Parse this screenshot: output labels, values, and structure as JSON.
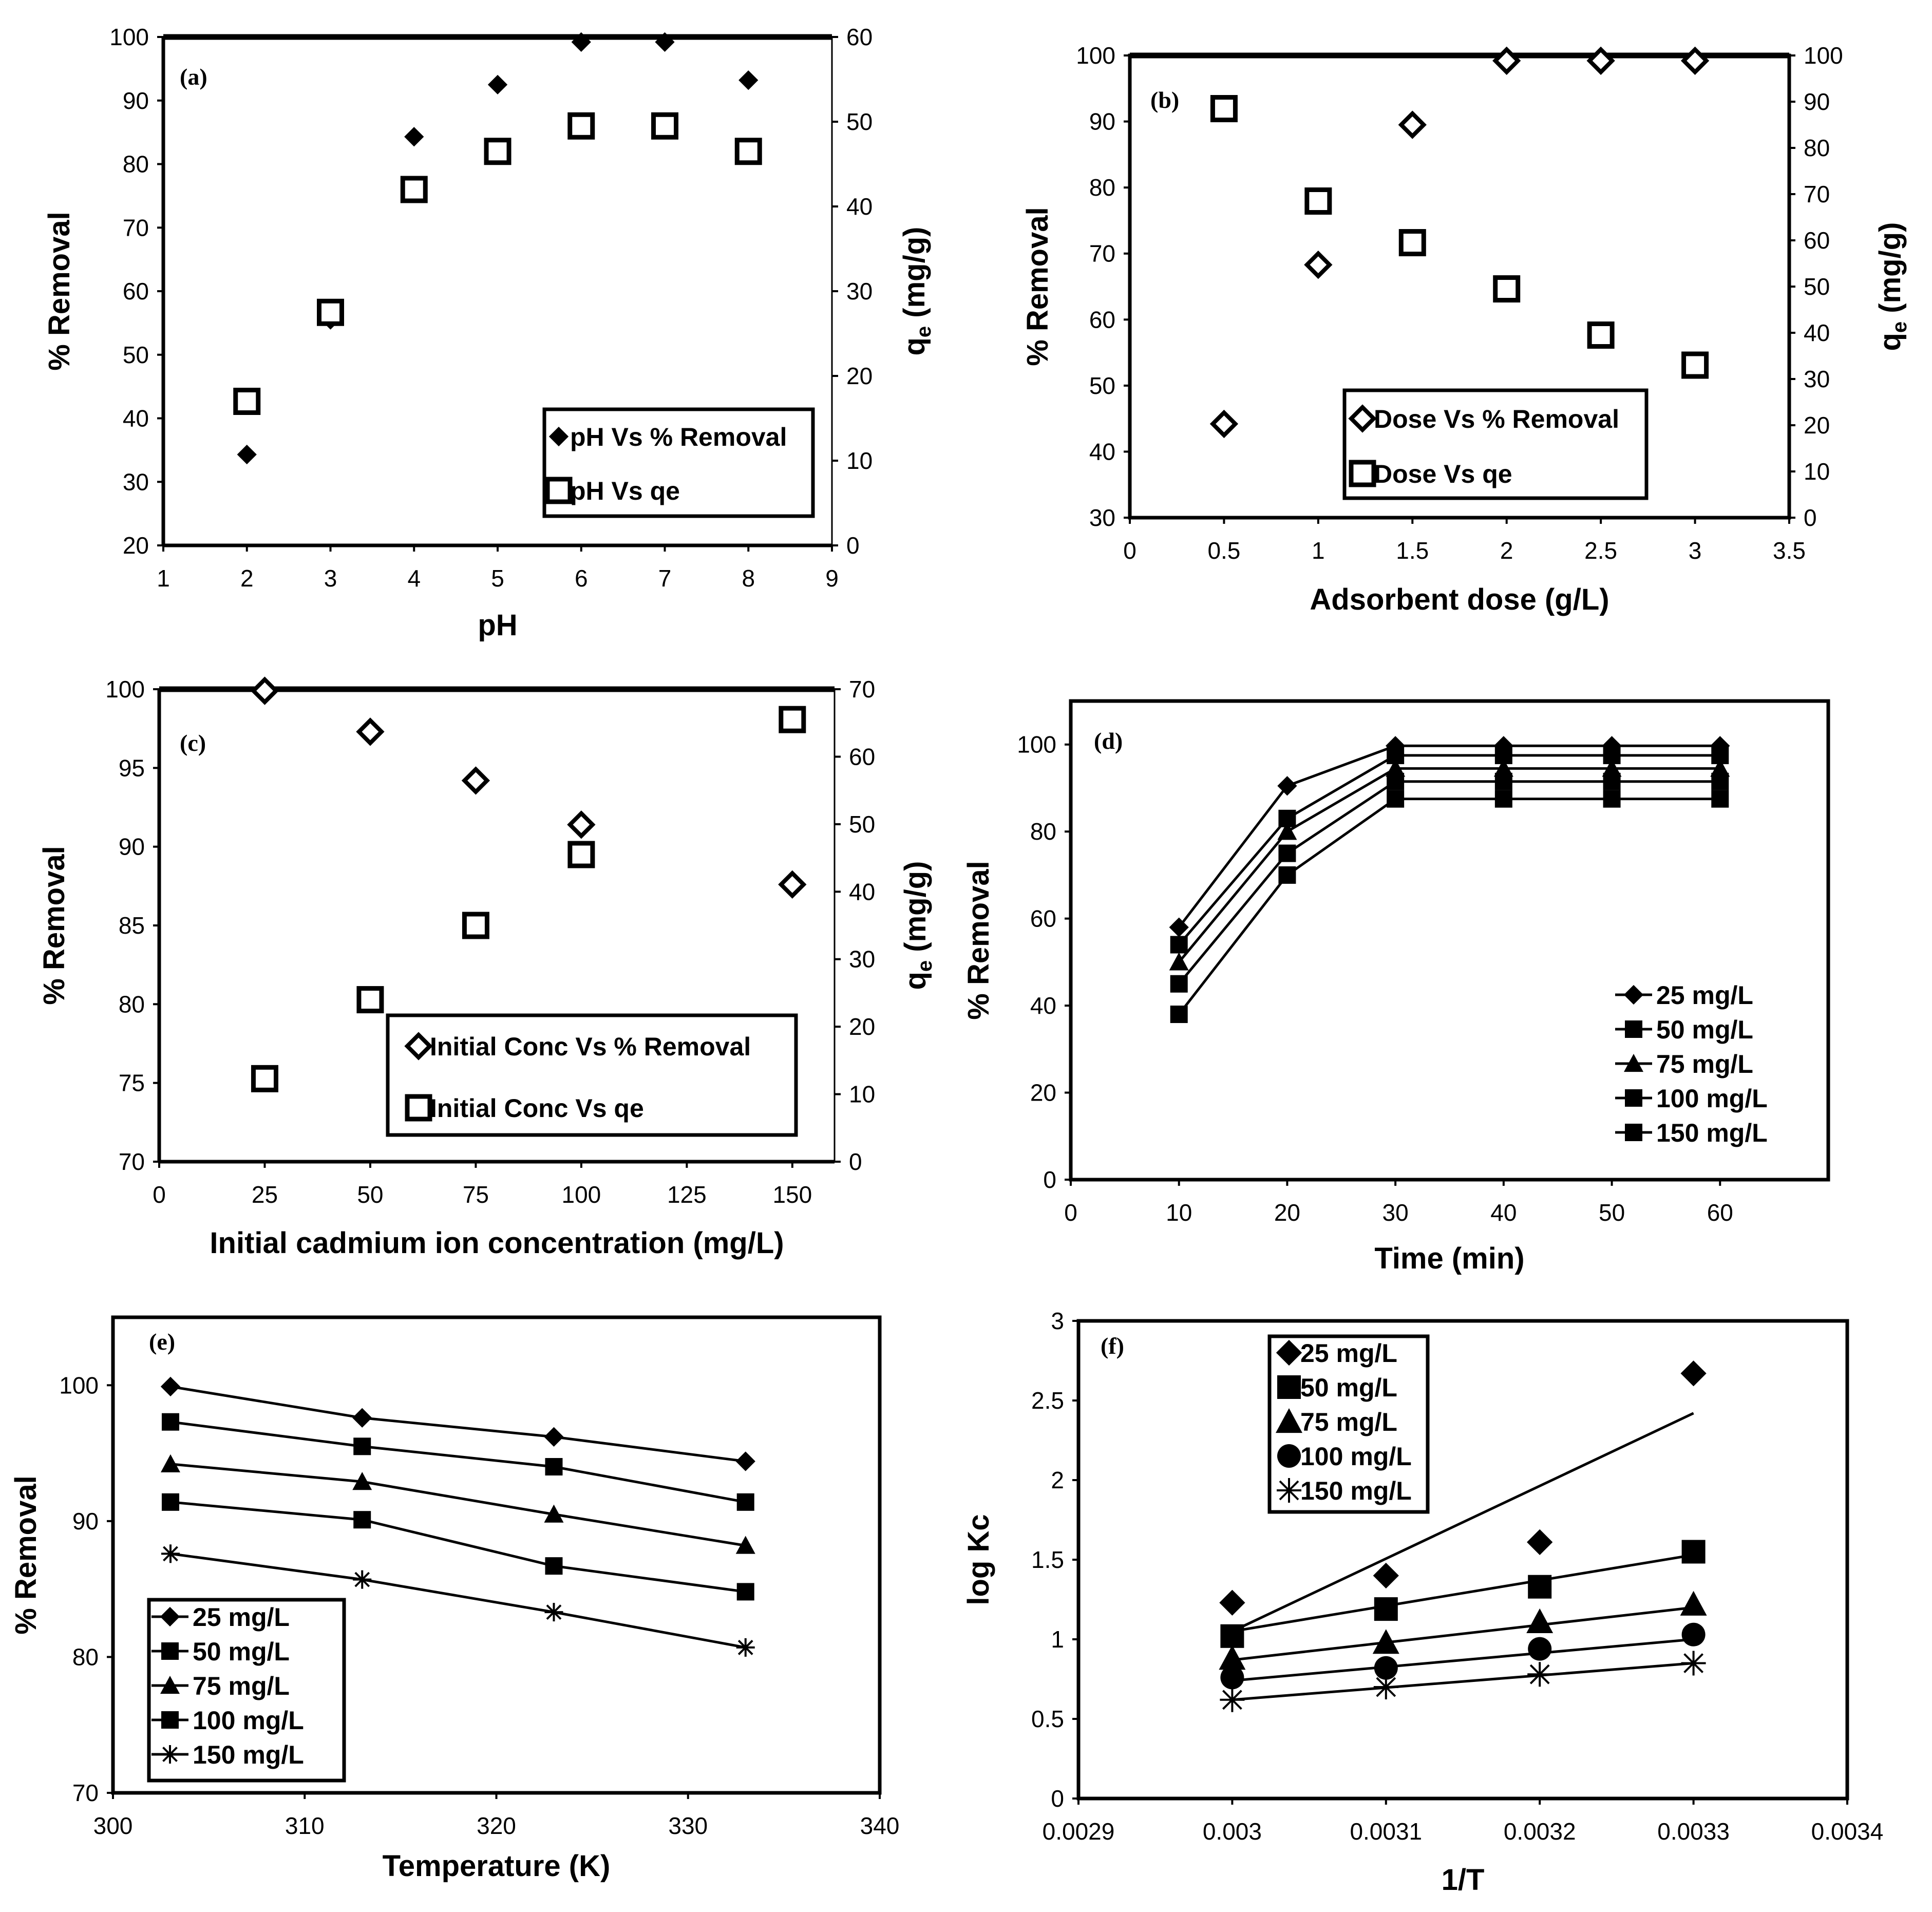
{
  "chart_data": [
    {
      "panel": "(a)",
      "type": "scatter",
      "xlabel": "pH",
      "ylabel": "% Removal",
      "y2label": "qe (mg/g)",
      "xlim": [
        1,
        9
      ],
      "ylim": [
        20,
        100
      ],
      "y2lim": [
        0,
        60
      ],
      "xticks": [
        "1",
        "2",
        "3",
        "4",
        "5",
        "6",
        "7",
        "8",
        "9"
      ],
      "yticks": [
        "20",
        "30",
        "40",
        "50",
        "60",
        "70",
        "80",
        "90",
        "100"
      ],
      "y2ticks": [
        "0",
        "10",
        "20",
        "30",
        "40",
        "50",
        "60"
      ],
      "legend_position": "bottom-right",
      "series": [
        {
          "name": "pH Vs % Removal",
          "marker": "diamond-filled",
          "axis": "left",
          "x": [
            2,
            3,
            4,
            5,
            6,
            7,
            8
          ],
          "y": [
            34.3,
            55.5,
            84.3,
            92.5,
            99.2,
            99.2,
            93.2
          ]
        },
        {
          "name": "pH Vs qe",
          "marker": "square-open",
          "axis": "right",
          "x": [
            2,
            3,
            4,
            5,
            6,
            7,
            8
          ],
          "y": [
            17,
            27.5,
            42,
            46.5,
            49.5,
            49.5,
            46.5
          ]
        }
      ]
    },
    {
      "panel": "(b)",
      "type": "scatter",
      "xlabel": "Adsorbent dose (g/L)",
      "ylabel": "% Removal",
      "y2label": "qe (mg/g)",
      "xlim": [
        0,
        3.5
      ],
      "ylim": [
        30,
        100
      ],
      "y2lim": [
        0,
        100
      ],
      "xticks": [
        "0",
        "0.5",
        "1",
        "1.5",
        "2",
        "2.5",
        "3",
        "3.5"
      ],
      "yticks": [
        "30",
        "40",
        "50",
        "60",
        "70",
        "80",
        "90",
        "100"
      ],
      "y2ticks": [
        "0",
        "10",
        "20",
        "30",
        "40",
        "50",
        "60",
        "70",
        "80",
        "90",
        "100"
      ],
      "legend_position": "bottom-center",
      "series": [
        {
          "name": "Dose Vs % Removal",
          "marker": "diamond-open",
          "axis": "left",
          "x": [
            0.5,
            1,
            1.5,
            2,
            2.5,
            3
          ],
          "y": [
            44.2,
            68.3,
            89.5,
            99.2,
            99.2,
            99.2
          ]
        },
        {
          "name": "Dose Vs qe",
          "marker": "square-open",
          "axis": "right",
          "x": [
            0.5,
            1,
            1.5,
            2,
            2.5,
            3
          ],
          "y": [
            88.5,
            68.5,
            59.5,
            49.5,
            39.5,
            33
          ]
        }
      ]
    },
    {
      "panel": "(c)",
      "type": "scatter",
      "xlabel": "Initial cadmium  ion concentration (mg/L)",
      "ylabel": "% Removal",
      "y2label": "qe (mg/g)",
      "xlim": [
        0,
        160
      ],
      "ylim": [
        70,
        100
      ],
      "y2lim": [
        0,
        70
      ],
      "xticks": [
        "0",
        "25",
        "50",
        "75",
        "100",
        "125",
        "150"
      ],
      "yticks": [
        "70",
        "75",
        "80",
        "85",
        "90",
        "95",
        "100"
      ],
      "y2ticks": [
        "0",
        "10",
        "20",
        "30",
        "40",
        "50",
        "60",
        "70"
      ],
      "legend_position": "bottom-right",
      "series": [
        {
          "name": "Initial Conc Vs % Removal",
          "marker": "diamond-open",
          "axis": "left",
          "x": [
            25,
            50,
            75,
            100,
            150
          ],
          "y": [
            99.9,
            97.3,
            94.2,
            91.4,
            87.6
          ]
        },
        {
          "name": "Initial Conc Vs qe",
          "marker": "square-open",
          "axis": "right",
          "x": [
            25,
            50,
            75,
            100,
            150
          ],
          "y": [
            12.3,
            24,
            35,
            45.5,
            65.5
          ]
        }
      ]
    },
    {
      "panel": "(d)",
      "type": "line",
      "xlabel": "Time (min)",
      "ylabel": "% Removal",
      "xlim": [
        0,
        70
      ],
      "ylim": [
        0,
        110
      ],
      "xticks": [
        "0",
        "10",
        "20",
        "30",
        "40",
        "50",
        "60"
      ],
      "yticks": [
        "0",
        "20",
        "40",
        "60",
        "80",
        "100"
      ],
      "legend_position": "bottom-right",
      "x": [
        10,
        20,
        30,
        40,
        50,
        60
      ],
      "series": [
        {
          "name": "25 mg/L",
          "marker": "diamond-filled",
          "values": [
            58,
            90.5,
            99.7,
            99.7,
            99.7,
            99.7
          ]
        },
        {
          "name": "50 mg/L",
          "marker": "square-filled",
          "values": [
            54,
            83,
            97.5,
            97.5,
            97.5,
            97.5
          ]
        },
        {
          "name": "75 mg/L",
          "marker": "triangle-filled",
          "values": [
            50,
            80,
            94.5,
            94.5,
            94.5,
            94.5
          ]
        },
        {
          "name": "100 mg/L",
          "marker": "square-filled",
          "values": [
            45,
            75,
            91.5,
            91.5,
            91.5,
            91.5
          ]
        },
        {
          "name": "150 mg/L",
          "marker": "square-filled",
          "values": [
            38,
            70,
            87.5,
            87.5,
            87.5,
            87.5
          ]
        }
      ]
    },
    {
      "panel": "(e)",
      "type": "line",
      "xlabel": "Temperature (K)",
      "ylabel": "% Removal",
      "xlim": [
        300,
        340
      ],
      "ylim": [
        70,
        105
      ],
      "xticks": [
        "300",
        "310",
        "320",
        "330",
        "340"
      ],
      "yticks": [
        "70",
        "80",
        "90",
        "100"
      ],
      "legend_position": "bottom-left",
      "x": [
        303,
        313,
        323,
        333
      ],
      "series": [
        {
          "name": "25 mg/L",
          "marker": "diamond-filled",
          "values": [
            99.9,
            97.6,
            96.2,
            94.4
          ]
        },
        {
          "name": "50 mg/L",
          "marker": "square-filled",
          "values": [
            97.3,
            95.5,
            94,
            91.4
          ]
        },
        {
          "name": "75 mg/L",
          "marker": "triangle-filled",
          "values": [
            94.2,
            92.9,
            90.5,
            88.2
          ]
        },
        {
          "name": "100 mg/L",
          "marker": "square-filled",
          "values": [
            91.4,
            90.1,
            86.7,
            84.8
          ]
        },
        {
          "name": "150 mg/L",
          "marker": "asterisk",
          "values": [
            87.6,
            85.7,
            83.3,
            80.7
          ]
        }
      ]
    },
    {
      "panel": "(f)",
      "type": "scatter",
      "xlabel": "1/T",
      "ylabel": "log Kc",
      "xlim": [
        0.0029,
        0.0034
      ],
      "ylim": [
        0,
        3
      ],
      "xticks": [
        "0.0029",
        "0.003",
        "0.0031",
        "0.0032",
        "0.0033",
        "0.0034"
      ],
      "yticks": [
        "0",
        "0.5",
        "1",
        "1.5",
        "2",
        "2.5",
        "3"
      ],
      "legend_position": "top-left",
      "x": [
        0.003,
        0.0031,
        0.0032,
        0.0033
      ],
      "series": [
        {
          "name": "25 mg/L",
          "marker": "diamond-filled",
          "values": [
            1.23,
            1.4,
            1.61,
            2.67
          ],
          "trend": [
            1.05,
            2.42
          ]
        },
        {
          "name": "50 mg/L",
          "marker": "square-filled",
          "values": [
            1.02,
            1.19,
            1.33,
            1.55
          ],
          "trend": [
            1.05,
            1.53
          ]
        },
        {
          "name": "75 mg/L",
          "marker": "triangle-filled",
          "values": [
            0.88,
            0.98,
            1.11,
            1.22
          ],
          "trend": [
            0.87,
            1.2
          ]
        },
        {
          "name": "100 mg/L",
          "marker": "circle-filled",
          "values": [
            0.76,
            0.82,
            0.94,
            1.03
          ],
          "trend": [
            0.74,
            1.0
          ]
        },
        {
          "name": "150 mg/L",
          "marker": "asterisk",
          "values": [
            0.62,
            0.7,
            0.78,
            0.85
          ],
          "trend": [
            0.62,
            0.85
          ]
        }
      ]
    }
  ]
}
